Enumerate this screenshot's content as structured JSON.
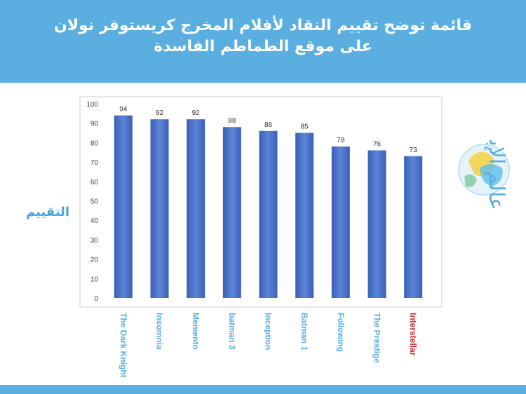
{
  "header": {
    "title_line1": "قائمة توضح تقييم النقاد لأفلام المخرج كريستوفر نولان",
    "title_line2": "على موقع الطماطم الفاسدة"
  },
  "logo": {
    "text": "عالم الإبداع"
  },
  "colors": {
    "header": "#5aaee0",
    "bar": "#4a72c6",
    "category_label": "#5aaee0",
    "highlight_label": "#d0202a"
  },
  "chart_data": {
    "type": "bar",
    "ylabel": "التقييم",
    "categories": [
      "The Dark Knight",
      "Insomnia",
      "Memento",
      "batman 3",
      "Inception",
      "Batman 1",
      "Following",
      "The Prestige",
      "Interstellar"
    ],
    "values": [
      94,
      92,
      92,
      88,
      86,
      85,
      78,
      76,
      73
    ],
    "ylim": [
      0,
      100
    ],
    "yticks": [
      0,
      10,
      20,
      30,
      40,
      50,
      60,
      70,
      80,
      90,
      100
    ],
    "highlight_category": "Interstellar",
    "grid": false,
    "legend": "none"
  }
}
